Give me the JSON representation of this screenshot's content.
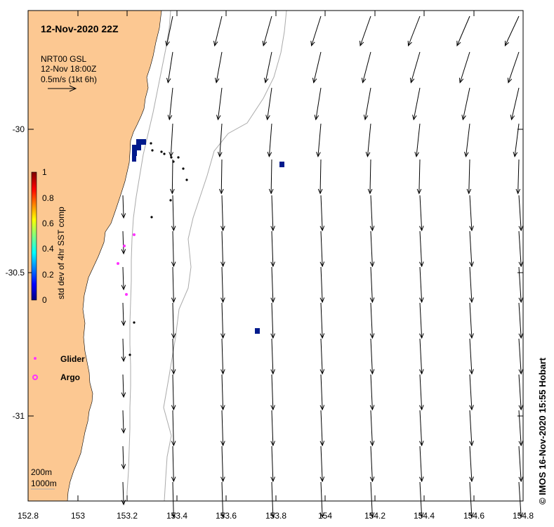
{
  "map": {
    "title": "12-Nov-2020 22Z",
    "product_line1": "NRT00 GSL",
    "product_line2": "12-Nov 18:00Z",
    "scale_label": "0.5m/s  (1kt 6h)",
    "credit": "©  IMOS 16-Nov-2020 15:55 Hobart",
    "isobath_labels": [
      "200m",
      "1000m"
    ],
    "land_color": "#fcc892",
    "lon_range": [
      152.8,
      154.8
    ],
    "lat_range": [
      -31.32,
      -29.6
    ]
  },
  "x_ticks": [
    "152.8",
    "153",
    "153.2",
    "153.4",
    "153.6",
    "153.8",
    "154",
    "154.2",
    "154.4",
    "154.6",
    "154.8"
  ],
  "y_ticks": [
    "-30",
    "-30.5",
    "-31"
  ],
  "colorbar": {
    "label": "std dev of 4hr SST comp",
    "ticks": [
      "0",
      "0.2",
      "0.4",
      "0.6",
      "0.8",
      "1"
    ]
  },
  "legend": {
    "glider": "Glider",
    "argo": "Argo",
    "glider_color": "#ff33ff",
    "argo_color": "#ff33ff"
  }
}
